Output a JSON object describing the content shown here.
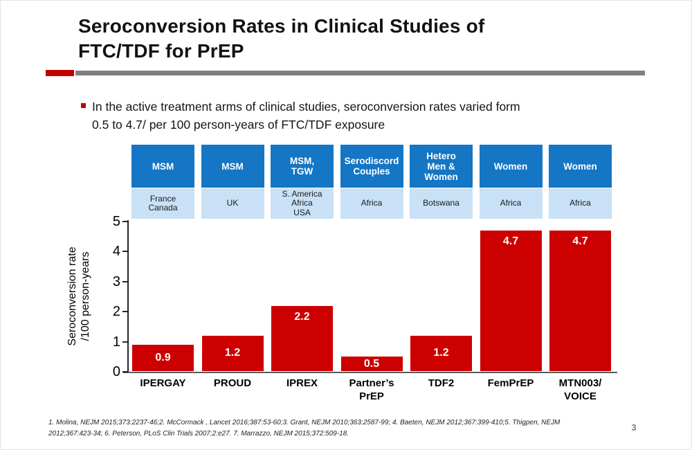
{
  "slide": {
    "title": "Seroconversion Rates in Clinical Studies of\nFTC/TDF for PrEP",
    "bullet": "In the active treatment arms of clinical studies, seroconversion rates varied form\n0.5 to 4.7/ per 100 person-years of FTC/TDF exposure",
    "footnote": "1. Molina, NEJM 2015;373:2237-46;2. McCormack , Lancet 2016;387:53-60;3. Grant, NEJM 2010;363:2587-99; 4. Baeten, NEJM 2012;367:399-410;5. Thigpen, NEJM\n2012;367:423-34; 6. Peterson, PLoS Clin Trials 2007;2:e27. 7. Marrazzo, NEJM 2015;372:509-18.",
    "page_number": "3"
  },
  "colors": {
    "accent_red": "#C00000",
    "rule_gray": "#7F7F7F",
    "bullet_red": "#C00000",
    "bar_red": "#CC0000",
    "population_box_blue": "#1476C4",
    "region_box_blue": "#C8E1F6"
  },
  "chart_data": {
    "type": "bar",
    "title": "",
    "xlabel": "",
    "ylabel": "Seroconversion rate\n/100 person-years",
    "ylim": [
      0,
      5
    ],
    "yticks": [
      0,
      1,
      2,
      3,
      4,
      5
    ],
    "grid": false,
    "legend": false,
    "categories": [
      "IPERGAY",
      "PROUD",
      "IPREX",
      "Partner’s\nPrEP",
      "TDF2",
      "FemPrEP",
      "MTN003/\nVOICE"
    ],
    "values": [
      0.9,
      1.2,
      2.2,
      0.5,
      1.2,
      4.7,
      4.7
    ],
    "value_labels": [
      "0.9",
      "1.2",
      "2.2",
      "0.5",
      "1.2",
      "4.7",
      "4.7"
    ],
    "populations": [
      "MSM",
      "MSM",
      "MSM,\nTGW",
      "Serodiscord\nCouples",
      "Hetero\nMen &\nWomen",
      "Women",
      "Women"
    ],
    "regions": [
      "France\nCanada",
      "UK",
      "S. America\nAfrica\nUSA",
      "Africa",
      "Botswana",
      "Africa",
      "Africa"
    ]
  }
}
